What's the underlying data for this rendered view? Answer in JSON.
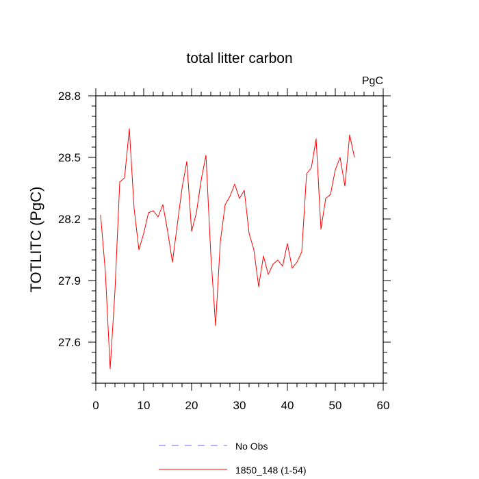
{
  "chart_data": {
    "type": "line",
    "title": "total litter carbon",
    "units_label": "PgC",
    "ylabel": "TOTLITC  (PgC)",
    "xlabel": "",
    "xlim": [
      0,
      60
    ],
    "ylim": [
      27.4,
      28.8
    ],
    "x_ticks": [
      0,
      10,
      20,
      30,
      40,
      50,
      60
    ],
    "y_ticks": [
      27.6,
      27.9,
      28.2,
      28.5,
      28.8
    ],
    "y_tick_labels": [
      "27.6",
      "27.9",
      "28.2",
      "28.5",
      "28.8"
    ],
    "x_minor_step": 2,
    "y_minor_step": 0.05,
    "grid": false,
    "legend_position": "bottom-center",
    "series": [
      {
        "name": "1850_148 (1-54)",
        "color": "#ff0000",
        "style": "solid",
        "x": [
          1,
          2,
          3,
          4,
          5,
          6,
          7,
          8,
          9,
          10,
          11,
          12,
          13,
          14,
          15,
          16,
          17,
          18,
          19,
          20,
          21,
          22,
          23,
          24,
          25,
          26,
          27,
          28,
          29,
          30,
          31,
          32,
          33,
          34,
          35,
          36,
          37,
          38,
          39,
          40,
          41,
          42,
          43,
          44,
          45,
          46,
          47,
          48,
          49,
          50,
          51,
          52,
          53,
          54
        ],
        "values": [
          28.22,
          27.94,
          27.47,
          27.85,
          28.38,
          28.4,
          28.64,
          28.25,
          28.05,
          28.13,
          28.23,
          28.24,
          28.21,
          28.27,
          28.14,
          27.99,
          28.17,
          28.35,
          28.48,
          28.14,
          28.23,
          28.39,
          28.51,
          28.03,
          27.68,
          28.09,
          28.27,
          28.31,
          28.37,
          28.3,
          28.34,
          28.13,
          28.05,
          27.87,
          28.02,
          27.93,
          27.98,
          28.0,
          27.97,
          28.08,
          27.96,
          27.99,
          28.04,
          28.42,
          28.45,
          28.59,
          28.15,
          28.3,
          28.32,
          28.44,
          28.5,
          28.36,
          28.61,
          28.5
        ]
      },
      {
        "name": "No Obs",
        "color": "#6666ff",
        "style": "dashed",
        "x": [],
        "values": []
      }
    ]
  }
}
